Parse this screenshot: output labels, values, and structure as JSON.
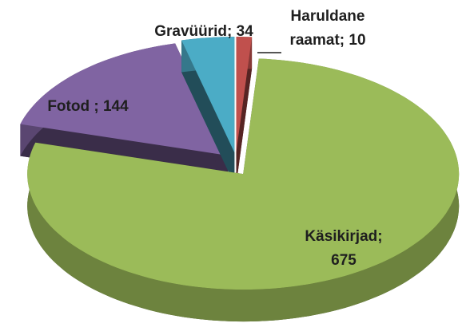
{
  "chart_data": {
    "type": "pie3d",
    "values": [
      10,
      675,
      144,
      34
    ],
    "value_labels": [
      "Haruldane\nraamat; 10",
      "Käsikirjad;\n675",
      "Fotod ; 144",
      "Gravüürid; 34"
    ],
    "colors": [
      "#c0504d",
      "#9bbb59",
      "#8064a2",
      "#4bacc6"
    ],
    "start_angle": 0,
    "direction": "clockwise",
    "exploded": true
  }
}
